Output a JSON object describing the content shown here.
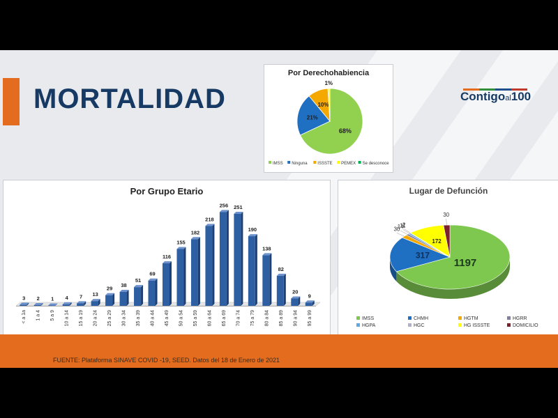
{
  "slide_title": "MORTALIDAD",
  "logo": {
    "part1": "Contigo",
    "part2": "al",
    "part3": "100"
  },
  "source_text": "FUENTE: Plataforma SINAVE COVID -19, SEED. Datos del 18 de Enero de 2021",
  "chart_data": [
    {
      "type": "pie",
      "title": "Por Derechohabiencia",
      "categories": [
        "IMSS",
        "Ninguna",
        "ISSSTE",
        "PEMEX",
        "Se desconoce"
      ],
      "values": [
        68,
        21,
        10,
        1,
        0
      ],
      "labels": [
        "68%",
        "21%",
        "10%",
        "1%",
        ""
      ],
      "colors": [
        "#92d050",
        "#1f6fc2",
        "#f5a800",
        "#ffff00",
        "#00b050"
      ],
      "legend": "bottom"
    },
    {
      "type": "bar",
      "title": "Por Grupo Etario",
      "categories": [
        "< a 1a",
        "1 a 4",
        "5 a 9",
        "10 a 14",
        "15 a 19",
        "20 a 24",
        "25 a 29",
        "30 a 34",
        "35 a 39",
        "40 a 44",
        "45 a 49",
        "50 a 54",
        "55 a 59",
        "60 a 64",
        "65 a 69",
        "70 a 74",
        "75 a 79",
        "80 a 84",
        "85 a 89",
        "90 a 94",
        "95 a 99"
      ],
      "values": [
        3,
        2,
        1,
        4,
        7,
        13,
        29,
        38,
        51,
        69,
        116,
        155,
        182,
        218,
        256,
        251,
        190,
        138,
        82,
        20,
        9
      ],
      "color": "#2e5fa3",
      "ylim": [
        0,
        270
      ]
    },
    {
      "type": "pie",
      "title": "Lugar de Defunción",
      "categories": [
        "IMSS",
        "CHMH",
        "HGTM",
        "HGRR",
        "HGPA",
        "HGC",
        "HG ISSSTE",
        "DOMICILIO"
      ],
      "values": [
        1197,
        317,
        30,
        14,
        11,
        2,
        172,
        30
      ],
      "colors": [
        "#7ec850",
        "#1f6fc2",
        "#f5a800",
        "#7f7f9f",
        "#5fa8e0",
        "#b0b0c8",
        "#ffff00",
        "#7a1f2b"
      ],
      "legend": "bottom"
    }
  ]
}
